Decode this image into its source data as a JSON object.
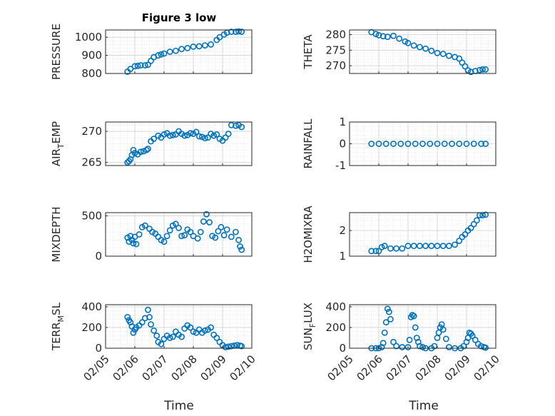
{
  "figure": {
    "title": "Figure 3 low",
    "marker_color": "#0072bd"
  },
  "chart_data": [
    {
      "type": "scatter",
      "ylabel": "PRESSURE",
      "ylim": [
        800,
        1040
      ],
      "yticks": [
        800,
        900,
        1000
      ],
      "xlim": [
        0,
        5
      ],
      "grid": true,
      "series": [
        {
          "x": [
            0.75,
            0.85,
            1.0,
            1.1,
            1.2,
            1.35,
            1.45,
            1.55,
            1.65,
            1.8,
            1.9,
            2.0,
            2.2,
            2.4,
            2.6,
            2.8,
            3.0,
            3.2,
            3.4,
            3.6,
            3.8,
            3.9,
            4.05,
            4.15,
            4.3,
            4.45,
            4.55,
            4.65
          ],
          "y": [
            810,
            825,
            840,
            842,
            845,
            845,
            848,
            870,
            890,
            900,
            905,
            910,
            920,
            925,
            935,
            940,
            948,
            950,
            955,
            960,
            985,
            1000,
            1015,
            1025,
            1030,
            1030,
            1032,
            1030
          ]
        }
      ]
    },
    {
      "type": "scatter",
      "ylabel": "THETA",
      "ylim": [
        267.5,
        281.5
      ],
      "yticks": [
        270,
        275,
        280
      ],
      "xlim": [
        0,
        5
      ],
      "grid": true,
      "series": [
        {
          "x": [
            0.75,
            0.9,
            1.0,
            1.15,
            1.3,
            1.5,
            1.7,
            1.9,
            2.0,
            2.2,
            2.4,
            2.6,
            2.8,
            3.0,
            3.2,
            3.4,
            3.6,
            3.75,
            3.85,
            3.95,
            4.05,
            4.15,
            4.3,
            4.45,
            4.55,
            4.65
          ],
          "y": [
            280.8,
            280.2,
            279.8,
            279.5,
            279.3,
            279.6,
            278.7,
            277.8,
            277.3,
            276.5,
            276.0,
            275.5,
            274.8,
            274.1,
            273.8,
            273.2,
            272.8,
            272.3,
            271.0,
            269.8,
            268.5,
            268.0,
            268.3,
            268.6,
            268.8,
            268.8
          ]
        }
      ]
    },
    {
      "type": "scatter",
      "ylabel": "AIR",
      "ylabel_sub": "T",
      "ylabel_tail": "EMP",
      "ylim": [
        264.5,
        271.5
      ],
      "yticks": [
        265,
        270
      ],
      "xlim": [
        0,
        5
      ],
      "grid": true,
      "series": [
        {
          "x": [
            0.75,
            0.8,
            0.85,
            0.9,
            0.95,
            1.0,
            1.1,
            1.2,
            1.3,
            1.4,
            1.45,
            1.55,
            1.65,
            1.8,
            1.9,
            2.0,
            2.1,
            2.2,
            2.3,
            2.4,
            2.5,
            2.6,
            2.7,
            2.8,
            2.9,
            3.0,
            3.1,
            3.2,
            3.3,
            3.4,
            3.5,
            3.6,
            3.7,
            3.8,
            3.9,
            4.0,
            4.1,
            4.2,
            4.3,
            4.45,
            4.55,
            4.65
          ],
          "y": [
            265.0,
            265.2,
            265.5,
            266.2,
            267.0,
            266.5,
            266.3,
            266.7,
            266.8,
            267.0,
            267.2,
            268.4,
            268.8,
            269.3,
            269.0,
            269.5,
            269.7,
            269.3,
            269.4,
            269.5,
            270.0,
            269.6,
            269.3,
            269.4,
            269.7,
            269.6,
            269.9,
            269.2,
            269.1,
            268.9,
            269.0,
            269.6,
            269.3,
            269.5,
            268.8,
            268.5,
            269.0,
            269.6,
            271.0,
            270.9,
            271.0,
            270.7
          ]
        }
      ]
    },
    {
      "type": "scatter",
      "ylabel": "RAINFALL",
      "ylim": [
        -1,
        1
      ],
      "yticks": [
        -1,
        0,
        1
      ],
      "xlim": [
        0,
        5
      ],
      "grid": true,
      "series": [
        {
          "x": [
            0.75,
            1.0,
            1.25,
            1.5,
            1.75,
            2.0,
            2.25,
            2.5,
            2.75,
            3.0,
            3.25,
            3.5,
            3.75,
            4.0,
            4.25,
            4.5,
            4.65
          ],
          "y": [
            0,
            0,
            0,
            0,
            0,
            0,
            0,
            0,
            0,
            0,
            0,
            0,
            0,
            0,
            0,
            0,
            0
          ]
        }
      ]
    },
    {
      "type": "scatter",
      "ylabel": "MIXDEPTH",
      "ylim": [
        0,
        540
      ],
      "yticks": [
        0,
        500
      ],
      "xlim": [
        0,
        5
      ],
      "grid": true,
      "series": [
        {
          "x": [
            0.75,
            0.8,
            0.85,
            0.9,
            0.95,
            1.0,
            1.05,
            1.15,
            1.25,
            1.35,
            1.5,
            1.6,
            1.7,
            1.8,
            1.9,
            2.0,
            2.1,
            2.2,
            2.3,
            2.4,
            2.5,
            2.6,
            2.7,
            2.8,
            2.9,
            3.0,
            3.15,
            3.25,
            3.35,
            3.45,
            3.55,
            3.65,
            3.75,
            3.85,
            3.95,
            4.05,
            4.15,
            4.3,
            4.45,
            4.55,
            4.6,
            4.65
          ],
          "y": [
            230,
            180,
            250,
            200,
            160,
            240,
            150,
            270,
            360,
            380,
            340,
            300,
            280,
            240,
            200,
            180,
            250,
            320,
            380,
            400,
            350,
            250,
            260,
            330,
            300,
            250,
            220,
            300,
            430,
            520,
            420,
            250,
            230,
            310,
            360,
            260,
            330,
            240,
            300,
            200,
            120,
            80
          ]
        }
      ]
    },
    {
      "type": "scatter",
      "ylabel": "H2OMIXRA",
      "ylim": [
        1,
        2.7
      ],
      "yticks": [
        1,
        2
      ],
      "xlim": [
        0,
        5
      ],
      "grid": true,
      "series": [
        {
          "x": [
            0.75,
            0.9,
            1.0,
            1.1,
            1.2,
            1.4,
            1.6,
            1.8,
            2.0,
            2.2,
            2.4,
            2.6,
            2.8,
            3.0,
            3.2,
            3.4,
            3.6,
            3.75,
            3.85,
            3.95,
            4.05,
            4.15,
            4.25,
            4.35,
            4.45,
            4.55,
            4.65
          ],
          "y": [
            1.2,
            1.2,
            1.2,
            1.35,
            1.4,
            1.3,
            1.3,
            1.3,
            1.4,
            1.4,
            1.4,
            1.4,
            1.4,
            1.4,
            1.4,
            1.4,
            1.45,
            1.6,
            1.75,
            1.85,
            2.0,
            2.1,
            2.25,
            2.4,
            2.6,
            2.6,
            2.62
          ]
        }
      ]
    },
    {
      "type": "scatter",
      "ylabel": "TERR",
      "ylabel_sub": "M",
      "ylabel_tail": "SL",
      "ylim": [
        0,
        420
      ],
      "yticks": [
        0,
        200,
        400
      ],
      "xlim": [
        0,
        5
      ],
      "grid": true,
      "series": [
        {
          "x": [
            0.75,
            0.8,
            0.85,
            0.9,
            0.95,
            1.0,
            1.05,
            1.15,
            1.25,
            1.35,
            1.45,
            1.5,
            1.55,
            1.65,
            1.75,
            1.8,
            1.9,
            2.0,
            2.1,
            2.2,
            2.3,
            2.4,
            2.5,
            2.6,
            2.7,
            2.8,
            2.9,
            3.0,
            3.1,
            3.2,
            3.3,
            3.4,
            3.5,
            3.6,
            3.7,
            3.8,
            3.9,
            4.0,
            4.1,
            4.2,
            4.3,
            4.4,
            4.5,
            4.6,
            4.65
          ],
          "y": [
            300,
            270,
            250,
            210,
            150,
            180,
            200,
            220,
            250,
            290,
            370,
            300,
            230,
            170,
            120,
            60,
            40,
            90,
            120,
            100,
            110,
            160,
            130,
            110,
            190,
            220,
            200,
            160,
            150,
            180,
            150,
            170,
            180,
            200,
            130,
            100,
            60,
            30,
            10,
            15,
            20,
            25,
            30,
            25,
            20
          ]
        }
      ]
    },
    {
      "type": "scatter",
      "ylabel": "SUN",
      "ylabel_sub": "F",
      "ylabel_tail": "LUX",
      "ylim": [
        0,
        420
      ],
      "yticks": [
        0,
        200,
        400
      ],
      "xlim": [
        0,
        5
      ],
      "grid": true,
      "series": [
        {
          "x": [
            0.75,
            0.9,
            1.0,
            1.1,
            1.15,
            1.2,
            1.25,
            1.3,
            1.35,
            1.4,
            1.5,
            1.6,
            1.8,
            2.0,
            2.05,
            2.1,
            2.15,
            2.2,
            2.25,
            2.3,
            2.35,
            2.4,
            2.5,
            2.6,
            2.8,
            2.9,
            3.0,
            3.05,
            3.1,
            3.15,
            3.2,
            3.3,
            3.4,
            3.6,
            3.8,
            3.9,
            4.0,
            4.05,
            4.1,
            4.15,
            4.2,
            4.3,
            4.4,
            4.5,
            4.6,
            4.65
          ],
          "y": [
            0,
            0,
            0,
            10,
            50,
            150,
            250,
            380,
            350,
            280,
            60,
            20,
            10,
            10,
            80,
            300,
            320,
            310,
            200,
            100,
            60,
            20,
            10,
            0,
            0,
            20,
            100,
            150,
            200,
            230,
            180,
            90,
            10,
            0,
            0,
            20,
            60,
            100,
            150,
            140,
            120,
            80,
            40,
            20,
            10,
            5
          ]
        }
      ]
    }
  ],
  "x_axis": {
    "tick_labels": [
      "02/05",
      "02/06",
      "02/07",
      "02/08",
      "02/09",
      "02/10"
    ],
    "label": "Time"
  }
}
